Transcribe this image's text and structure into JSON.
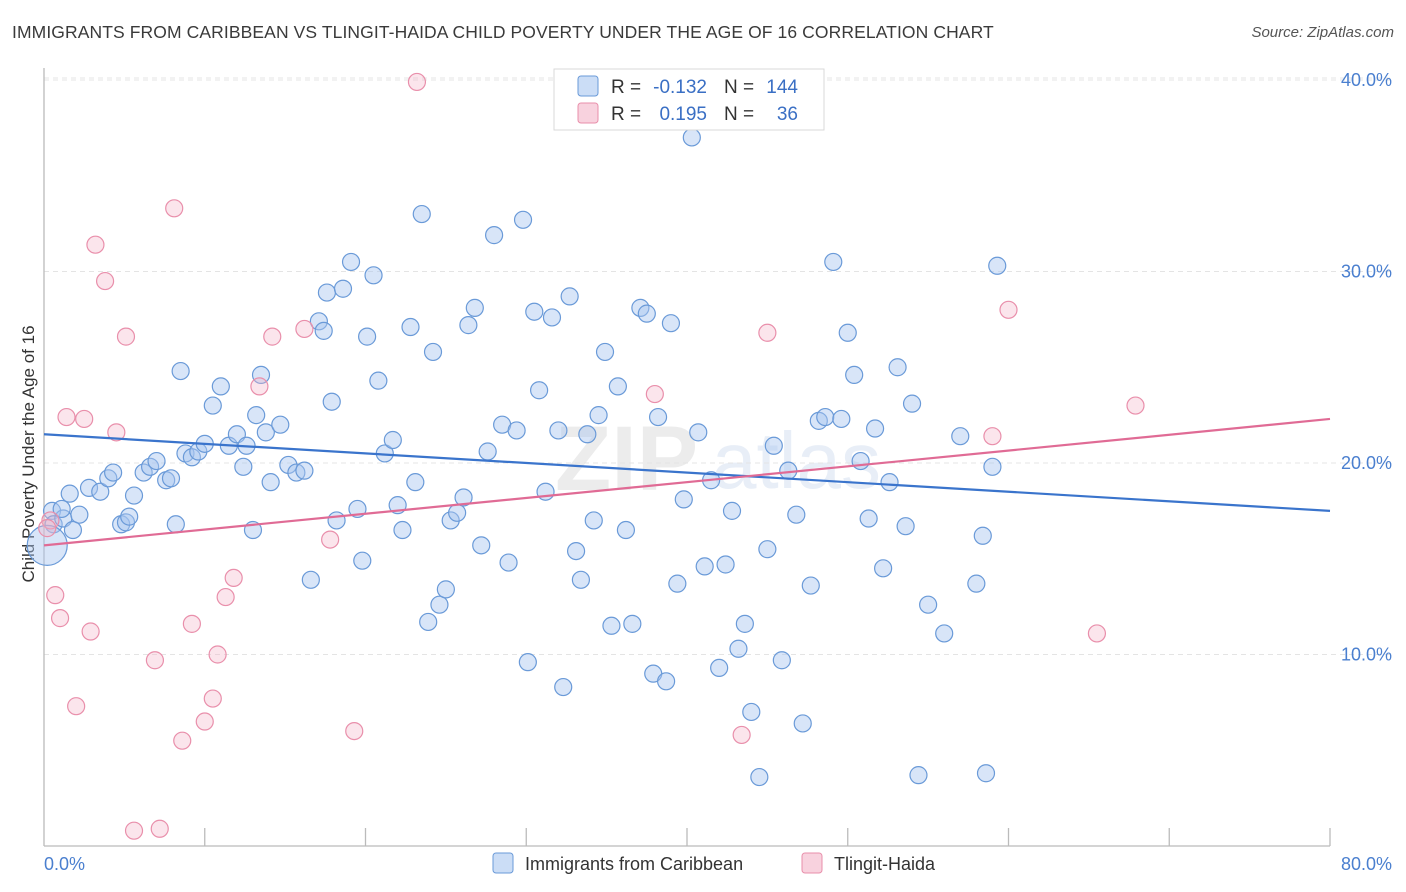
{
  "title": "IMMIGRANTS FROM CARIBBEAN VS TLINGIT-HAIDA CHILD POVERTY UNDER THE AGE OF 16 CORRELATION CHART",
  "source": "Source: ZipAtlas.com",
  "watermark": {
    "zip": "ZIP",
    "atlas": "atlas"
  },
  "colors": {
    "blue": "#3a74cc",
    "pink": "#e06b95",
    "tick_text": "#4a7fcf"
  },
  "chart_data": {
    "type": "scatter",
    "xlabel": "",
    "ylabel": "Child Poverty Under the Age of 16",
    "xlim": [
      0,
      80
    ],
    "ylim": [
      0,
      40
    ],
    "x_tick_labels": [
      "0.0%",
      "80.0%"
    ],
    "y_ticks": [
      10,
      20,
      30,
      40
    ],
    "y_tick_labels": [
      "10.0%",
      "20.0%",
      "30.0%",
      "40.0%"
    ],
    "legend_top": [
      {
        "r_label": "R =",
        "r": "-0.132",
        "n_label": "N =",
        "n": "144",
        "series": "blue"
      },
      {
        "r_label": "R =",
        "r": "0.195",
        "n_label": "N =",
        "n": "36",
        "series": "pink"
      }
    ],
    "legend_bottom": [
      "Immigrants from Caribbean",
      "Tlingit-Haida"
    ],
    "series": [
      {
        "name": "Immigrants from Caribbean",
        "color": "blue",
        "trend": {
          "x": [
            0,
            80
          ],
          "y": [
            21.5,
            17.5
          ]
        },
        "points": [
          [
            0.5,
            17.5
          ],
          [
            0.6,
            16.8
          ],
          [
            1.2,
            17.1
          ],
          [
            1.8,
            16.5
          ],
          [
            1.1,
            17.6
          ],
          [
            1.6,
            18.4
          ],
          [
            2.2,
            17.3
          ],
          [
            2.8,
            18.7
          ],
          [
            3.5,
            18.5
          ],
          [
            4.0,
            19.2
          ],
          [
            4.3,
            19.5
          ],
          [
            4.8,
            16.8
          ],
          [
            5.1,
            16.9
          ],
          [
            5.6,
            18.3
          ],
          [
            5.3,
            17.2
          ],
          [
            6.2,
            19.5
          ],
          [
            6.6,
            19.8
          ],
          [
            7.0,
            20.1
          ],
          [
            7.6,
            19.1
          ],
          [
            7.9,
            19.2
          ],
          [
            8.2,
            16.8
          ],
          [
            8.5,
            24.8
          ],
          [
            8.8,
            20.5
          ],
          [
            9.2,
            20.3
          ],
          [
            9.6,
            20.6
          ],
          [
            10.0,
            21.0
          ],
          [
            10.5,
            23.0
          ],
          [
            11.0,
            24.0
          ],
          [
            11.5,
            20.9
          ],
          [
            12.0,
            21.5
          ],
          [
            12.4,
            19.8
          ],
          [
            12.6,
            20.9
          ],
          [
            13.0,
            16.5
          ],
          [
            13.5,
            24.6
          ],
          [
            13.2,
            22.5
          ],
          [
            13.8,
            21.6
          ],
          [
            14.1,
            19.0
          ],
          [
            14.7,
            22.0
          ],
          [
            15.2,
            19.9
          ],
          [
            15.7,
            19.5
          ],
          [
            16.2,
            19.6
          ],
          [
            16.6,
            13.9
          ],
          [
            17.1,
            27.4
          ],
          [
            17.4,
            26.9
          ],
          [
            17.6,
            28.9
          ],
          [
            17.9,
            23.2
          ],
          [
            18.2,
            17.0
          ],
          [
            18.6,
            29.1
          ],
          [
            19.1,
            30.5
          ],
          [
            19.5,
            17.6
          ],
          [
            19.8,
            14.9
          ],
          [
            20.1,
            26.6
          ],
          [
            20.5,
            29.8
          ],
          [
            20.8,
            24.3
          ],
          [
            21.2,
            20.5
          ],
          [
            21.7,
            21.2
          ],
          [
            22.0,
            17.8
          ],
          [
            22.3,
            16.5
          ],
          [
            22.8,
            27.1
          ],
          [
            23.1,
            19.0
          ],
          [
            23.5,
            33.0
          ],
          [
            23.9,
            11.7
          ],
          [
            24.2,
            25.8
          ],
          [
            24.6,
            12.6
          ],
          [
            25.0,
            13.4
          ],
          [
            25.3,
            17.0
          ],
          [
            25.7,
            17.4
          ],
          [
            26.1,
            18.2
          ],
          [
            26.4,
            27.2
          ],
          [
            26.8,
            28.1
          ],
          [
            27.2,
            15.7
          ],
          [
            27.6,
            20.6
          ],
          [
            28.0,
            31.9
          ],
          [
            28.5,
            22.0
          ],
          [
            28.9,
            14.8
          ],
          [
            29.4,
            21.7
          ],
          [
            29.8,
            32.7
          ],
          [
            30.1,
            9.6
          ],
          [
            30.5,
            27.9
          ],
          [
            30.8,
            23.8
          ],
          [
            31.2,
            18.5
          ],
          [
            31.6,
            27.6
          ],
          [
            32.0,
            21.7
          ],
          [
            32.3,
            8.3
          ],
          [
            32.7,
            28.7
          ],
          [
            33.1,
            15.4
          ],
          [
            33.4,
            13.9
          ],
          [
            33.8,
            21.5
          ],
          [
            34.2,
            17.0
          ],
          [
            34.5,
            22.5
          ],
          [
            34.9,
            25.8
          ],
          [
            35.3,
            11.5
          ],
          [
            35.7,
            24.0
          ],
          [
            36.2,
            16.5
          ],
          [
            36.6,
            11.6
          ],
          [
            37.1,
            28.1
          ],
          [
            37.5,
            27.8
          ],
          [
            37.9,
            9.0
          ],
          [
            38.2,
            22.4
          ],
          [
            38.7,
            8.6
          ],
          [
            39.0,
            27.3
          ],
          [
            39.4,
            13.7
          ],
          [
            39.8,
            18.1
          ],
          [
            40.3,
            37.0
          ],
          [
            40.7,
            21.6
          ],
          [
            41.1,
            14.6
          ],
          [
            41.5,
            19.1
          ],
          [
            42.0,
            9.3
          ],
          [
            42.4,
            14.7
          ],
          [
            42.8,
            17.5
          ],
          [
            43.2,
            10.3
          ],
          [
            43.6,
            11.6
          ],
          [
            44.0,
            7.0
          ],
          [
            44.5,
            3.6
          ],
          [
            45.0,
            15.5
          ],
          [
            45.4,
            20.9
          ],
          [
            45.9,
            9.7
          ],
          [
            46.3,
            19.6
          ],
          [
            46.8,
            17.3
          ],
          [
            47.2,
            6.4
          ],
          [
            47.7,
            13.6
          ],
          [
            48.2,
            22.2
          ],
          [
            48.6,
            22.4
          ],
          [
            49.1,
            30.5
          ],
          [
            49.6,
            22.3
          ],
          [
            50.0,
            26.8
          ],
          [
            50.4,
            24.6
          ],
          [
            50.8,
            20.1
          ],
          [
            51.3,
            17.1
          ],
          [
            51.7,
            21.8
          ],
          [
            52.2,
            14.5
          ],
          [
            52.6,
            19.0
          ],
          [
            53.1,
            25.0
          ],
          [
            53.6,
            16.7
          ],
          [
            54.0,
            23.1
          ],
          [
            54.4,
            3.7
          ],
          [
            55.0,
            12.6
          ],
          [
            56.0,
            11.1
          ],
          [
            57.0,
            21.4
          ],
          [
            58.0,
            13.7
          ],
          [
            58.4,
            16.2
          ],
          [
            58.6,
            3.8
          ],
          [
            59.0,
            19.8
          ],
          [
            59.3,
            30.3
          ]
        ]
      },
      {
        "name": "Tlingit-Haida",
        "color": "pink",
        "trend": {
          "x": [
            0,
            80
          ],
          "y": [
            15.7,
            22.3
          ]
        },
        "points": [
          [
            0.4,
            17.0
          ],
          [
            0.7,
            13.1
          ],
          [
            1.0,
            11.9
          ],
          [
            1.4,
            22.4
          ],
          [
            2.0,
            7.3
          ],
          [
            2.5,
            22.3
          ],
          [
            2.9,
            11.2
          ],
          [
            3.2,
            31.4
          ],
          [
            3.8,
            29.5
          ],
          [
            4.5,
            21.6
          ],
          [
            5.1,
            26.6
          ],
          [
            5.6,
            0.8
          ],
          [
            6.9,
            9.7
          ],
          [
            7.2,
            0.9
          ],
          [
            8.1,
            33.3
          ],
          [
            8.6,
            5.5
          ],
          [
            9.2,
            11.6
          ],
          [
            10.0,
            6.5
          ],
          [
            10.5,
            7.7
          ],
          [
            10.8,
            10.0
          ],
          [
            11.3,
            13.0
          ],
          [
            11.8,
            14.0
          ],
          [
            13.4,
            24.0
          ],
          [
            14.2,
            26.6
          ],
          [
            16.2,
            27.0
          ],
          [
            17.8,
            16.0
          ],
          [
            19.3,
            6.0
          ],
          [
            23.2,
            39.9
          ],
          [
            38.0,
            23.6
          ],
          [
            43.4,
            5.8
          ],
          [
            45.0,
            26.8
          ],
          [
            59.0,
            21.4
          ],
          [
            60.0,
            28.0
          ],
          [
            65.5,
            11.1
          ],
          [
            67.9,
            23.0
          ],
          [
            0.2,
            16.6
          ]
        ]
      }
    ]
  }
}
